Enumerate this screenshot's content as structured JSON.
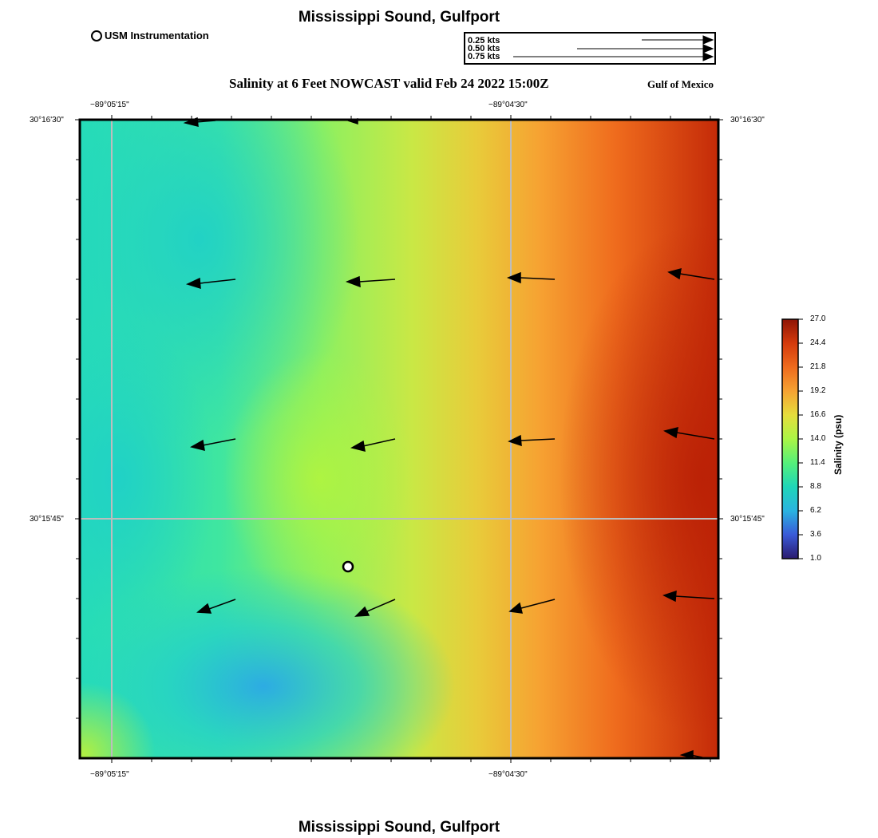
{
  "header": {
    "title": "Mississippi Sound, Gulfport",
    "subtitle": "Salinity at 6 Feet NOWCAST valid Feb 24 2022 15:00Z",
    "region": "Gulf of Mexico"
  },
  "footer": {
    "title": "Mississippi Sound, Gulfport"
  },
  "legend": {
    "marker_label": "USM Instrumentation",
    "vector_scale": [
      "0.25 kts",
      "0.50 kts",
      "0.75 kts"
    ]
  },
  "axes": {
    "x_ticks": [
      "−89°05'15\"",
      "−89°04'30\""
    ],
    "y_ticks": [
      "30°16'30\"",
      "30°15'45\""
    ]
  },
  "colorbar": {
    "title": "Salinity (psu)",
    "ticks": [
      "27.0",
      "24.4",
      "21.8",
      "19.2",
      "16.6",
      "14.0",
      "11.4",
      "8.8",
      "6.2",
      "3.6",
      "1.0"
    ],
    "colors": [
      "#2a1a6e",
      "#3a5ad8",
      "#2ab3e0",
      "#1fd6b8",
      "#55f07a",
      "#aaf545",
      "#e6dd3c",
      "#f6a232",
      "#ef6b1d",
      "#d43a0c",
      "#8e1405"
    ]
  },
  "map": {
    "variable": "Salinity",
    "units": "psu",
    "station": {
      "name": "USM Instrumentation"
    },
    "current_vectors": [
      {
        "row": 0,
        "col": 0,
        "dir": "W",
        "speed_kts": 0.36
      },
      {
        "row": 0,
        "col": 1,
        "dir": "W",
        "speed_kts": 0.1
      },
      {
        "row": 1,
        "col": 0,
        "dir": "W",
        "speed_kts": 0.49
      },
      {
        "row": 1,
        "col": 1,
        "dir": "W",
        "speed_kts": 0.47
      },
      {
        "row": 1,
        "col": 2,
        "dir": "W",
        "speed_kts": 0.44
      },
      {
        "row": 1,
        "col": 3,
        "dir": "WNW",
        "speed_kts": 0.45
      },
      {
        "row": 2,
        "col": 0,
        "dir": "WSW",
        "speed_kts": 0.45
      },
      {
        "row": 2,
        "col": 1,
        "dir": "WSW",
        "speed_kts": 0.44
      },
      {
        "row": 2,
        "col": 2,
        "dir": "W",
        "speed_kts": 0.44
      },
      {
        "row": 2,
        "col": 3,
        "dir": "WNW",
        "speed_kts": 0.49
      },
      {
        "row": 3,
        "col": 0,
        "dir": "WSW",
        "speed_kts": 0.42
      },
      {
        "row": 3,
        "col": 1,
        "dir": "SW",
        "speed_kts": 0.44
      },
      {
        "row": 3,
        "col": 2,
        "dir": "WSW",
        "speed_kts": 0.45
      },
      {
        "row": 3,
        "col": 3,
        "dir": "W",
        "speed_kts": 0.51
      },
      {
        "row": 4,
        "col": 3,
        "dir": "W",
        "speed_kts": 0.15
      }
    ]
  }
}
